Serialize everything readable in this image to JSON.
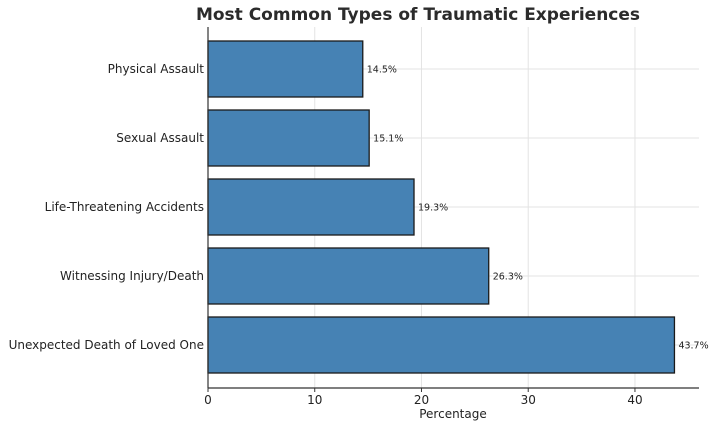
{
  "chart_data": {
    "type": "bar",
    "orientation": "horizontal",
    "title": "Most Common Types of Traumatic Experiences",
    "xlabel": "Percentage",
    "ylabel": "",
    "categories": [
      "Physical Assault",
      "Sexual Assault",
      "Life-Threatening Accidents",
      "Witnessing Injury/Death",
      "Unexpected Death of Loved One"
    ],
    "values": [
      14.5,
      15.1,
      19.3,
      26.3,
      43.7
    ],
    "value_labels": [
      "14.5%",
      "15.1%",
      "19.3%",
      "26.3%",
      "43.7%"
    ],
    "xlim": [
      0,
      46
    ],
    "xticks": [
      0,
      10,
      20,
      30,
      40
    ],
    "grid": true,
    "bar_color": "#4682b4",
    "bar_edge_color": "#1a1a1a"
  }
}
